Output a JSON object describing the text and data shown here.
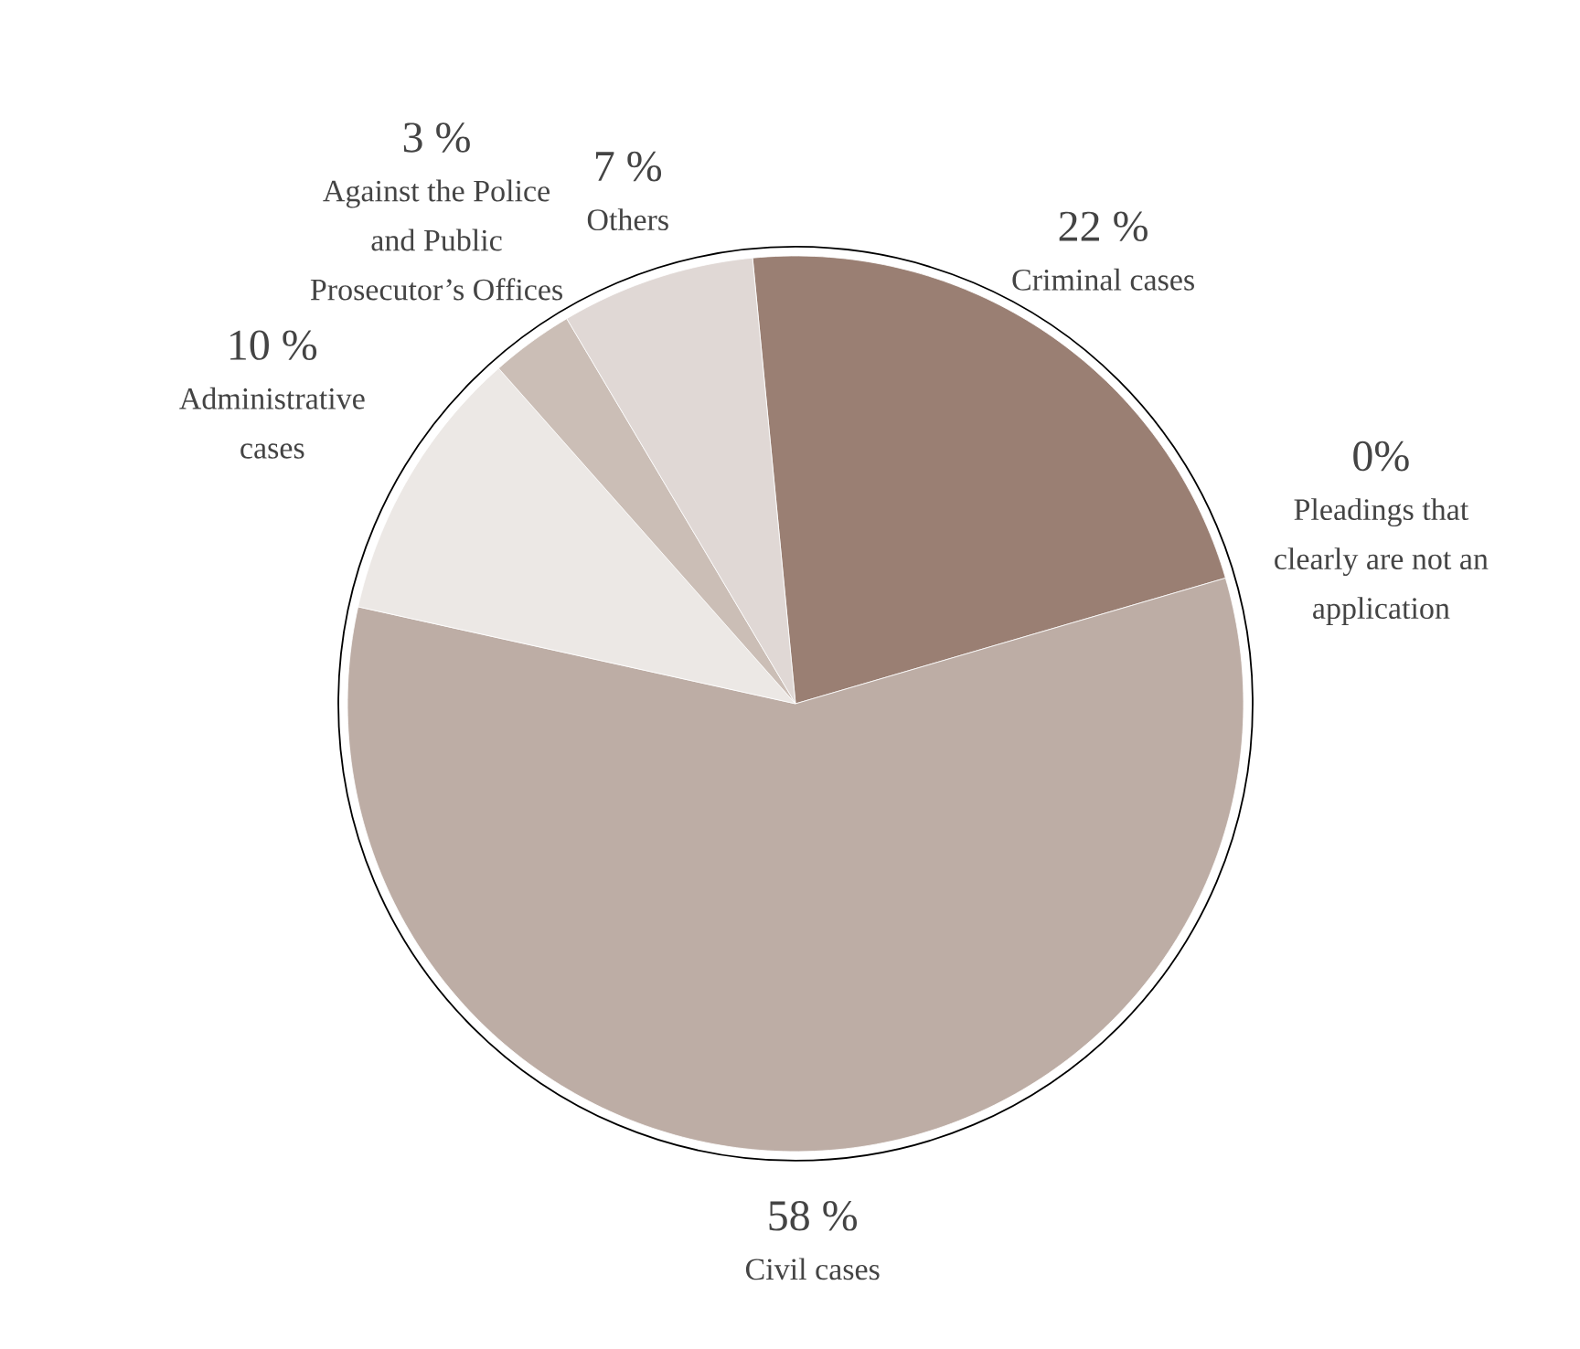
{
  "chart_data": {
    "type": "pie",
    "categories": [
      "Criminal cases",
      "Pleadings that clearly are not an application",
      "Civil cases",
      "Administrative cases",
      "Against the Police and Public Prosecutor’s Offices",
      "Others"
    ],
    "values": [
      22,
      0,
      58,
      10,
      3,
      7
    ],
    "value_labels": [
      "22 %",
      "0%",
      "58 %",
      "10 %",
      "3 %",
      "7 %"
    ],
    "colors": [
      "#9a7f73",
      "#a08a80",
      "#bdada5",
      "#ece8e5",
      "#cbbeb6",
      "#e0d8d5"
    ],
    "legend": false
  }
}
